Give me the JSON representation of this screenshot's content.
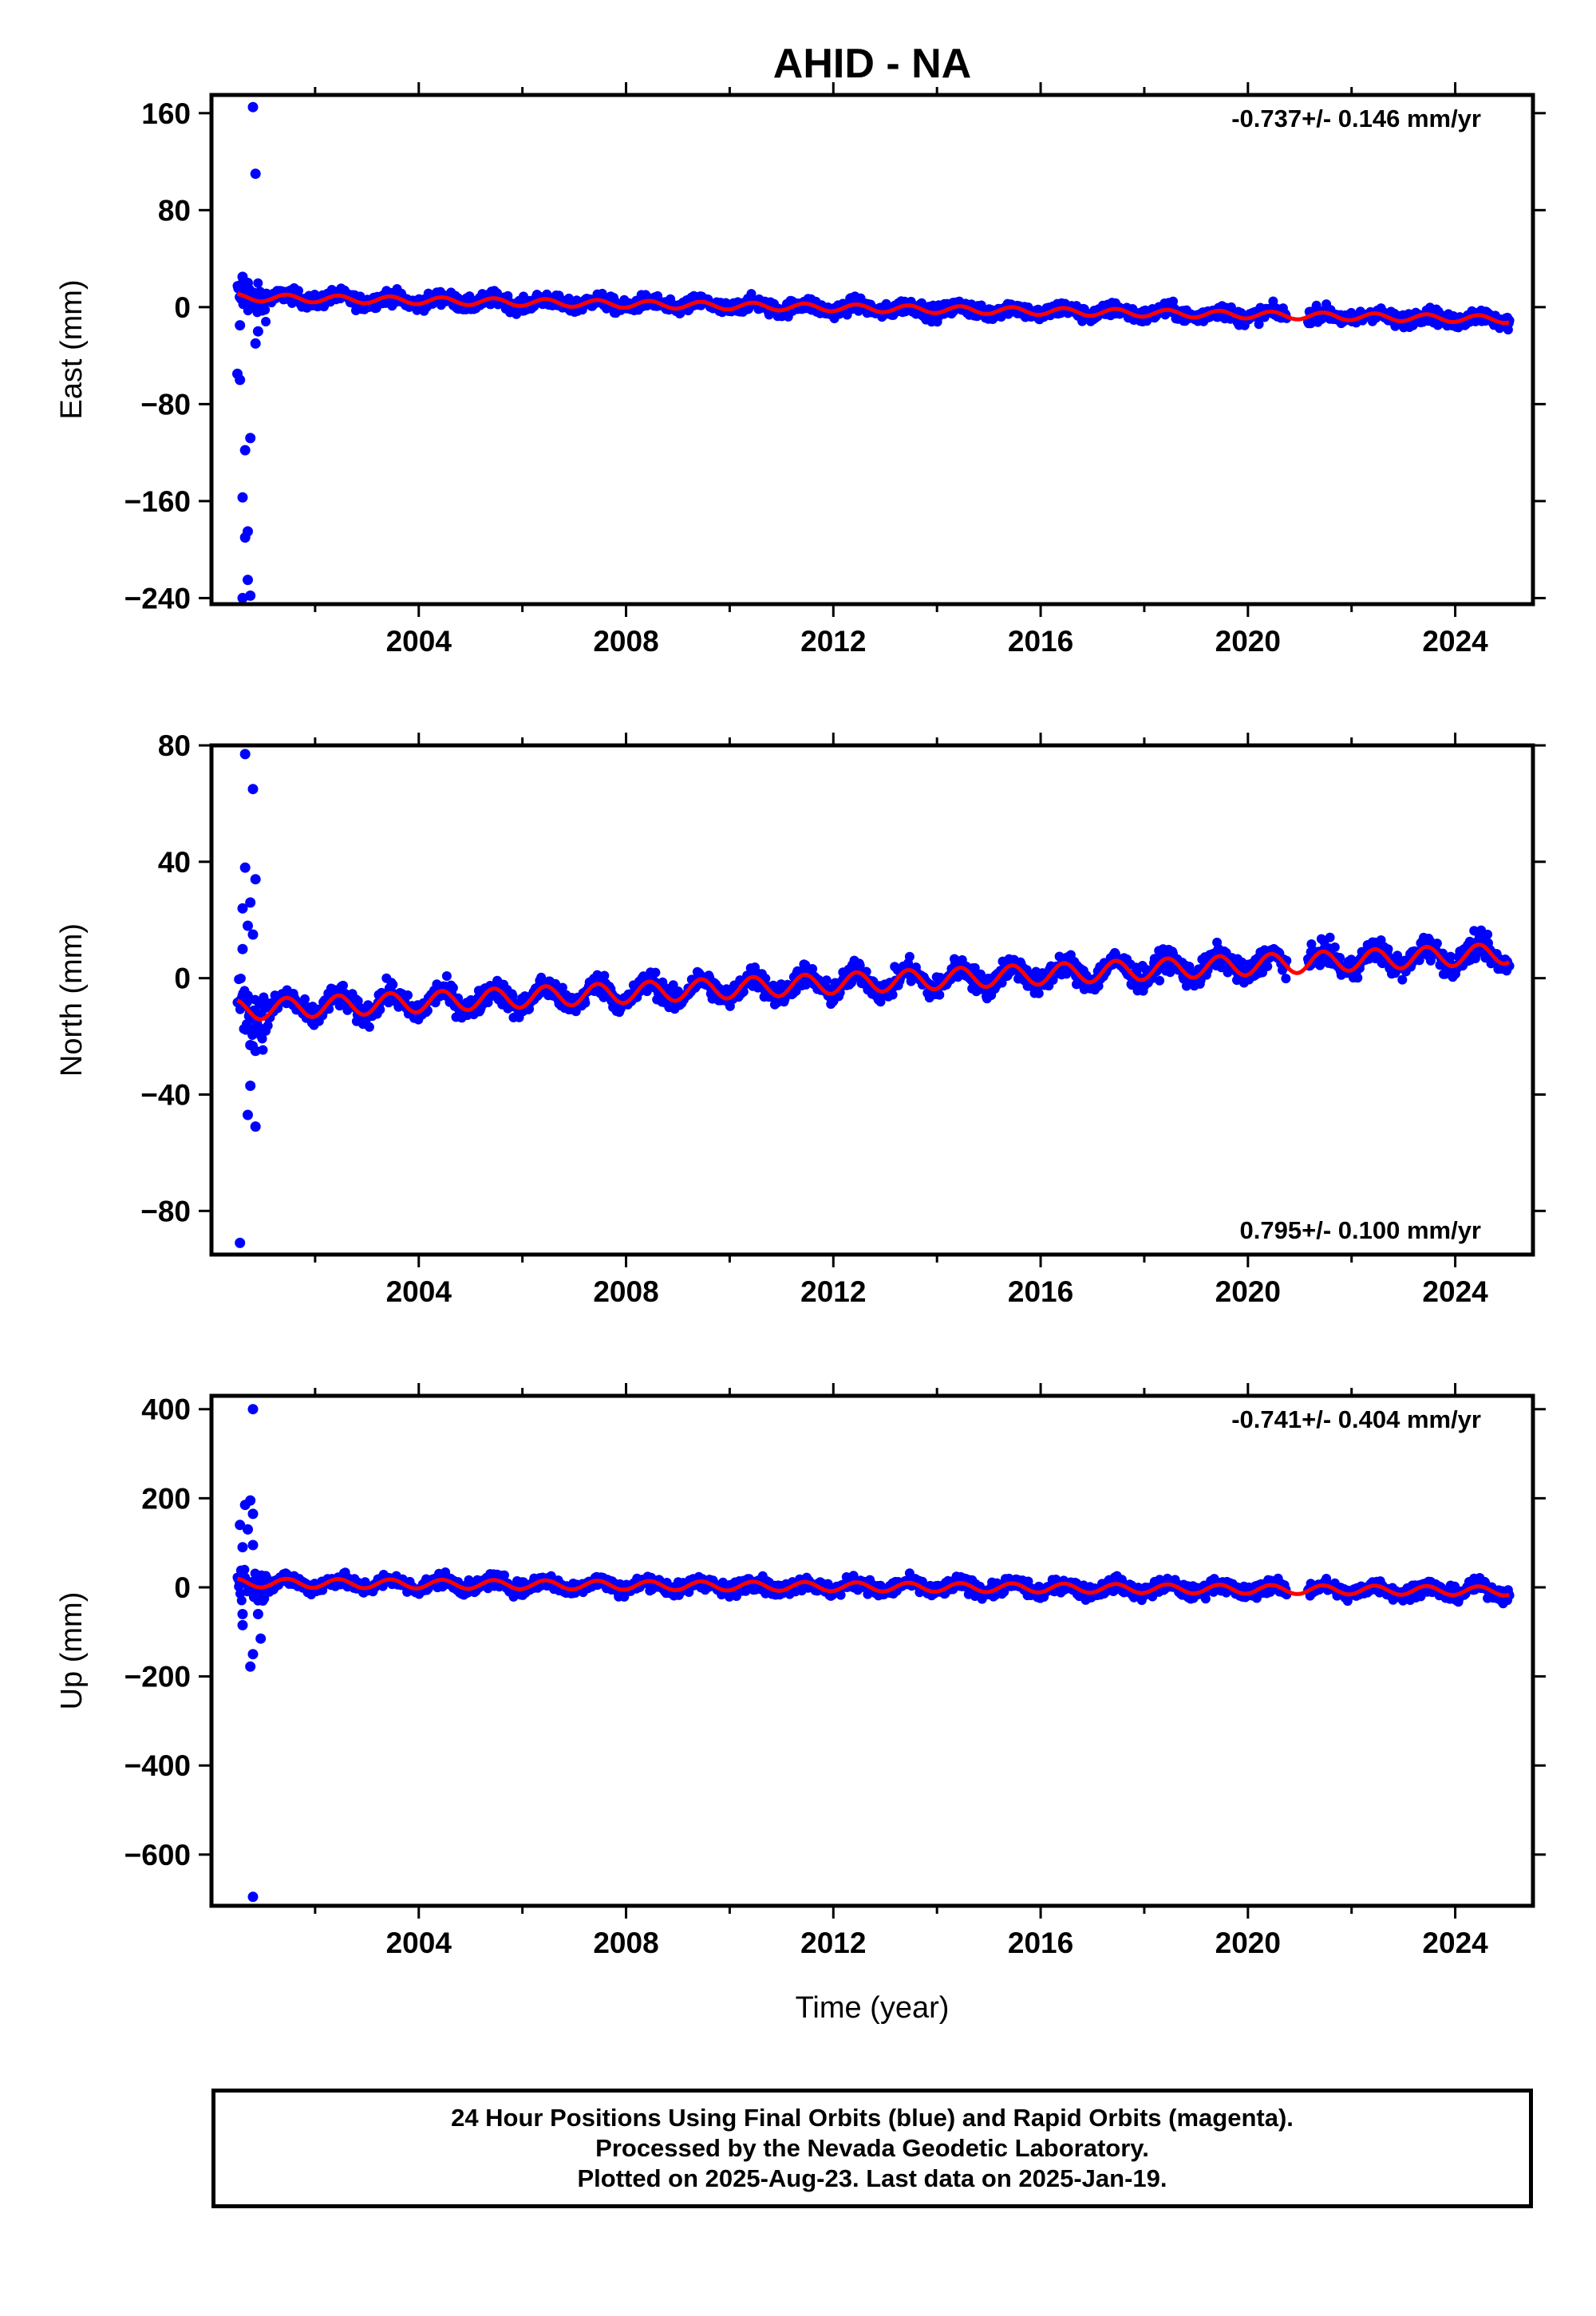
{
  "title": "AHID - NA",
  "xlabel": "Time (year)",
  "colors": {
    "final_orbits": "#0000ff",
    "model": "#ff0000",
    "frame": "#000000"
  },
  "footer": {
    "line1": "24 Hour Positions Using Final Orbits (blue) and Rapid Orbits (magenta).",
    "line2": "Processed by the Nevada Geodetic Laboratory.",
    "line3": "Plotted on 2025-Aug-23. Last data on 2025-Jan-19."
  },
  "chart_data": [
    {
      "type": "scatter",
      "ylabel": "East (mm)",
      "rate_label": "-0.737+/- 0.146 mm/yr",
      "rate_position": "top-right",
      "xlim": [
        2000.0,
        2025.5
      ],
      "ylim": [
        -245,
        175
      ],
      "xticks": [
        2004,
        2008,
        2012,
        2016,
        2020,
        2024
      ],
      "yticks": [
        160,
        80,
        0,
        -80,
        -160,
        -240
      ],
      "grid": false,
      "x_start": 2000.5,
      "x_end": 2025.05,
      "rate_mm_per_yr": -0.737,
      "intercept_mm": 8,
      "seasonal_amplitude_mm": 3,
      "scatter_mm": 3,
      "gap": [
        2020.75,
        2021.15
      ],
      "outliers": [
        {
          "x": 2000.8,
          "y": 165
        },
        {
          "x": 2000.85,
          "y": 110
        },
        {
          "x": 2000.5,
          "y": -55
        },
        {
          "x": 2000.55,
          "y": -60
        },
        {
          "x": 2000.65,
          "y": -118
        },
        {
          "x": 2000.75,
          "y": -108
        },
        {
          "x": 2000.6,
          "y": -157
        },
        {
          "x": 2000.7,
          "y": -185
        },
        {
          "x": 2000.65,
          "y": -190
        },
        {
          "x": 2000.7,
          "y": -225
        },
        {
          "x": 2000.6,
          "y": -240
        },
        {
          "x": 2000.75,
          "y": -238
        },
        {
          "x": 2000.85,
          "y": -30
        },
        {
          "x": 2000.9,
          "y": -20
        },
        {
          "x": 2000.6,
          "y": 25
        },
        {
          "x": 2000.7,
          "y": 20
        },
        {
          "x": 2000.55,
          "y": -15
        }
      ]
    },
    {
      "type": "scatter",
      "ylabel": "North (mm)",
      "rate_label": "0.795+/- 0.100 mm/yr",
      "rate_position": "bottom-right",
      "xlim": [
        2000.0,
        2025.5
      ],
      "ylim": [
        -95,
        80
      ],
      "xticks": [
        2004,
        2008,
        2012,
        2016,
        2020,
        2024
      ],
      "yticks": [
        80,
        40,
        0,
        -40,
        -80
      ],
      "grid": false,
      "x_start": 2000.5,
      "x_end": 2025.05,
      "rate_mm_per_yr": 0.795,
      "intercept_mm": -11,
      "seasonal_amplitude_mm": 3.5,
      "scatter_mm": 2,
      "gap": [
        2020.75,
        2021.15
      ],
      "outliers": [
        {
          "x": 2000.65,
          "y": 77
        },
        {
          "x": 2000.8,
          "y": 65
        },
        {
          "x": 2000.65,
          "y": 38
        },
        {
          "x": 2000.85,
          "y": 34
        },
        {
          "x": 2000.6,
          "y": 24
        },
        {
          "x": 2000.75,
          "y": 26
        },
        {
          "x": 2000.7,
          "y": 18
        },
        {
          "x": 2000.8,
          "y": 15
        },
        {
          "x": 2000.6,
          "y": 10
        },
        {
          "x": 2000.75,
          "y": -23
        },
        {
          "x": 2000.85,
          "y": -25
        },
        {
          "x": 2000.75,
          "y": -37
        },
        {
          "x": 2000.7,
          "y": -47
        },
        {
          "x": 2000.85,
          "y": -51
        },
        {
          "x": 2000.55,
          "y": -91
        },
        {
          "x": 2000.9,
          "y": -18
        }
      ]
    },
    {
      "type": "scatter",
      "ylabel": "Up (mm)",
      "rate_label": "-0.741+/- 0.404 mm/yr",
      "rate_position": "top-right",
      "xlim": [
        2000.0,
        2025.5
      ],
      "ylim": [
        -715,
        430
      ],
      "xticks": [
        2004,
        2008,
        2012,
        2016,
        2020,
        2024
      ],
      "yticks": [
        400,
        200,
        0,
        -200,
        -400,
        -600
      ],
      "grid": false,
      "x_start": 2000.5,
      "x_end": 2025.05,
      "rate_mm_per_yr": -0.741,
      "intercept_mm": 10,
      "seasonal_amplitude_mm": 10,
      "scatter_mm": 8,
      "gap": [
        2020.75,
        2021.15
      ],
      "outliers": [
        {
          "x": 2000.8,
          "y": 400
        },
        {
          "x": 2000.75,
          "y": 195
        },
        {
          "x": 2000.65,
          "y": 185
        },
        {
          "x": 2000.8,
          "y": 165
        },
        {
          "x": 2000.55,
          "y": 140
        },
        {
          "x": 2000.7,
          "y": 130
        },
        {
          "x": 2000.6,
          "y": 90
        },
        {
          "x": 2000.8,
          "y": 95
        },
        {
          "x": 2000.6,
          "y": -60
        },
        {
          "x": 2000.9,
          "y": -60
        },
        {
          "x": 2000.6,
          "y": -85
        },
        {
          "x": 2000.95,
          "y": -115
        },
        {
          "x": 2000.8,
          "y": -150
        },
        {
          "x": 2000.75,
          "y": -178
        },
        {
          "x": 2000.8,
          "y": -695
        }
      ]
    }
  ]
}
